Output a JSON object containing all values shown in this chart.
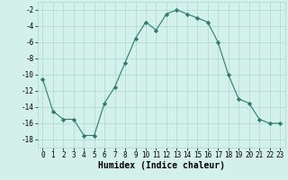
{
  "x": [
    0,
    1,
    2,
    3,
    4,
    5,
    6,
    7,
    8,
    9,
    10,
    11,
    12,
    13,
    14,
    15,
    16,
    17,
    18,
    19,
    20,
    21,
    22,
    23
  ],
  "y": [
    -10.5,
    -14.5,
    -15.5,
    -15.5,
    -17.5,
    -17.5,
    -13.5,
    -11.5,
    -8.5,
    -5.5,
    -3.5,
    -4.5,
    -2.5,
    -2.0,
    -2.5,
    -3.0,
    -3.5,
    -6.0,
    -10.0,
    -13.0,
    -13.5,
    -15.5,
    -16.0,
    -16.0
  ],
  "line_color": "#2e7d6e",
  "marker": "D",
  "marker_size": 2.2,
  "xlabel": "Humidex (Indice chaleur)",
  "ylim": [
    -19,
    -1
  ],
  "xlim": [
    -0.5,
    23.5
  ],
  "yticks": [
    -18,
    -16,
    -14,
    -12,
    -10,
    -8,
    -6,
    -4,
    -2
  ],
  "xticks": [
    0,
    1,
    2,
    3,
    4,
    5,
    6,
    7,
    8,
    9,
    10,
    11,
    12,
    13,
    14,
    15,
    16,
    17,
    18,
    19,
    20,
    21,
    22,
    23
  ],
  "bg_color": "#d4f0eb",
  "grid_color": "#a8d8d0",
  "label_fontsize": 7,
  "tick_fontsize": 5.5
}
